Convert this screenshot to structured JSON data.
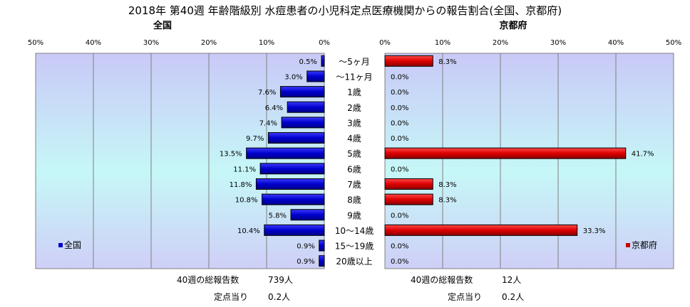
{
  "chart_data": {
    "type": "bar",
    "orientation": "horizontal-butterfly",
    "title": "2018年 第40週 年齢階級別 水痘患者の小児科定点医療機関からの報告割合(全国、京都府)",
    "categories": [
      "～5ヶ月",
      "～11ヶ月",
      "1歳",
      "2歳",
      "3歳",
      "4歳",
      "5歳",
      "6歳",
      "7歳",
      "8歳",
      "9歳",
      "10～14歳",
      "15～19歳",
      "20歳以上"
    ],
    "xlim": [
      0,
      50
    ],
    "tick_labels": [
      "50%",
      "40%",
      "30%",
      "20%",
      "10%",
      "0%"
    ],
    "tick_labels_right": [
      "0%",
      "10%",
      "20%",
      "30%",
      "40%",
      "50%"
    ],
    "grid": true,
    "series": [
      {
        "name": "全国",
        "heading": "全国",
        "color": "#0000cc",
        "values": [
          0.5,
          3.0,
          7.6,
          6.4,
          7.4,
          9.7,
          13.5,
          11.1,
          11.8,
          10.8,
          5.8,
          10.4,
          0.9,
          0.9
        ],
        "value_labels": [
          "0.5%",
          "3.0%",
          "7.6%",
          "6.4%",
          "7.4%",
          "9.7%",
          "13.5%",
          "11.1%",
          "11.8%",
          "10.8%",
          "5.8%",
          "10.4%",
          "0.9%",
          "0.9%"
        ]
      },
      {
        "name": "京都府",
        "heading": "京都府",
        "color": "#cc0000",
        "values": [
          8.3,
          0.0,
          0.0,
          0.0,
          0.0,
          0.0,
          41.7,
          0.0,
          8.3,
          8.3,
          0.0,
          33.3,
          0.0,
          0.0
        ],
        "value_labels": [
          "8.3%",
          "0.0%",
          "0.0%",
          "0.0%",
          "0.0%",
          "0.0%",
          "41.7%",
          "0.0%",
          "8.3%",
          "8.3%",
          "0.0%",
          "33.3%",
          "0.0%",
          "0.0%"
        ]
      }
    ],
    "legend_placement": "bottom-left / bottom-right inside each panel",
    "footer": {
      "left": {
        "total_label": "40週の総報告数",
        "total_value": "739人",
        "per_label": "定点当り",
        "per_value": "0.2人"
      },
      "right": {
        "total_label": "40週の総報告数",
        "total_value": "12人",
        "per_label": "定点当り",
        "per_value": "0.2人"
      }
    }
  }
}
